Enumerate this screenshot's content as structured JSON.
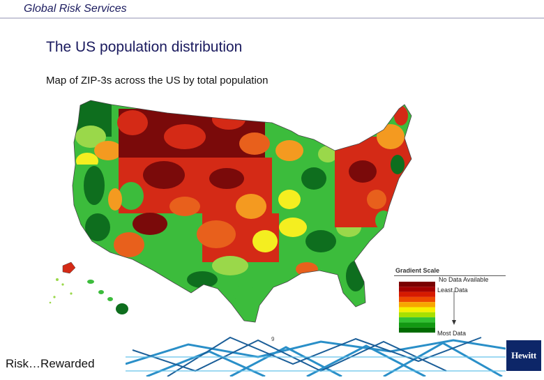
{
  "header": {
    "title": "Global Risk Services"
  },
  "slide": {
    "title": "The US population distribution",
    "subtitle": "Map of ZIP-3s across the US by total population"
  },
  "legend": {
    "title": "Gradient Scale",
    "no_data": "No Data Available",
    "least": "Least Data",
    "most": "Most Data",
    "colors": [
      "#7a0000",
      "#a30000",
      "#d61a00",
      "#ee4a00",
      "#f7a600",
      "#f7f000",
      "#a8e000",
      "#33c233",
      "#129912",
      "#006b00"
    ]
  },
  "map": {
    "colors": {
      "dark_red": "#7a0a0a",
      "red": "#d42a16",
      "orange_red": "#e8601c",
      "orange": "#f49a20",
      "yellow": "#f4ee20",
      "lime": "#9ad84a",
      "green": "#3cbc3c",
      "dark_green": "#0e6e1e"
    }
  },
  "footer": {
    "tagline": "Risk…Rewarded",
    "page_number": "9",
    "brand": "Hewitt"
  }
}
